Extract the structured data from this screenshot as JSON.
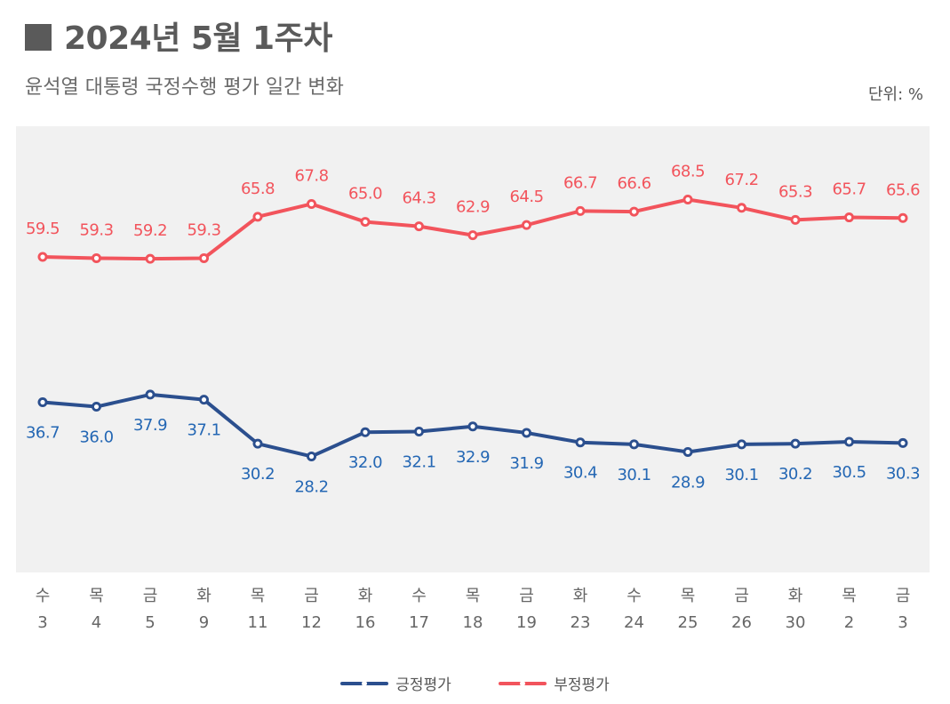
{
  "header": {
    "title": "2024년 5월 1주차",
    "subtitle": "윤석열 대통령 국정수행 평가 일간 변화",
    "unit": "단위: %"
  },
  "colors": {
    "positive": "#2b4f8e",
    "positive_label": "#2467b4",
    "negative": "#f2545c",
    "plot_bg": "#f1f1f1"
  },
  "chart_data": {
    "type": "line",
    "title": "윤석열 대통령 국정수행 평가 일간 변화",
    "ylabel": "%",
    "ylim": [
      10,
      80
    ],
    "categories": [
      {
        "day": "수",
        "date": "3"
      },
      {
        "day": "목",
        "date": "4"
      },
      {
        "day": "금",
        "date": "5"
      },
      {
        "day": "화",
        "date": "9"
      },
      {
        "day": "목",
        "date": "11"
      },
      {
        "day": "금",
        "date": "12"
      },
      {
        "day": "화",
        "date": "16"
      },
      {
        "day": "수",
        "date": "17"
      },
      {
        "day": "목",
        "date": "18"
      },
      {
        "day": "금",
        "date": "19"
      },
      {
        "day": "화",
        "date": "23"
      },
      {
        "day": "수",
        "date": "24"
      },
      {
        "day": "목",
        "date": "25"
      },
      {
        "day": "금",
        "date": "26"
      },
      {
        "day": "화",
        "date": "30"
      },
      {
        "day": "목",
        "date": "2"
      },
      {
        "day": "금",
        "date": "3"
      }
    ],
    "series": [
      {
        "name": "긍정평가",
        "key": "positive",
        "values": [
          36.7,
          36.0,
          37.9,
          37.1,
          30.2,
          28.2,
          32.0,
          32.1,
          32.9,
          31.9,
          30.4,
          30.1,
          28.9,
          30.1,
          30.2,
          30.5,
          30.3
        ]
      },
      {
        "name": "부정평가",
        "key": "negative",
        "values": [
          59.5,
          59.3,
          59.2,
          59.3,
          65.8,
          67.8,
          65.0,
          64.3,
          62.9,
          64.5,
          66.7,
          66.6,
          68.5,
          67.2,
          65.3,
          65.7,
          65.6
        ]
      }
    ],
    "legend": [
      "긍정평가",
      "부정평가"
    ]
  }
}
